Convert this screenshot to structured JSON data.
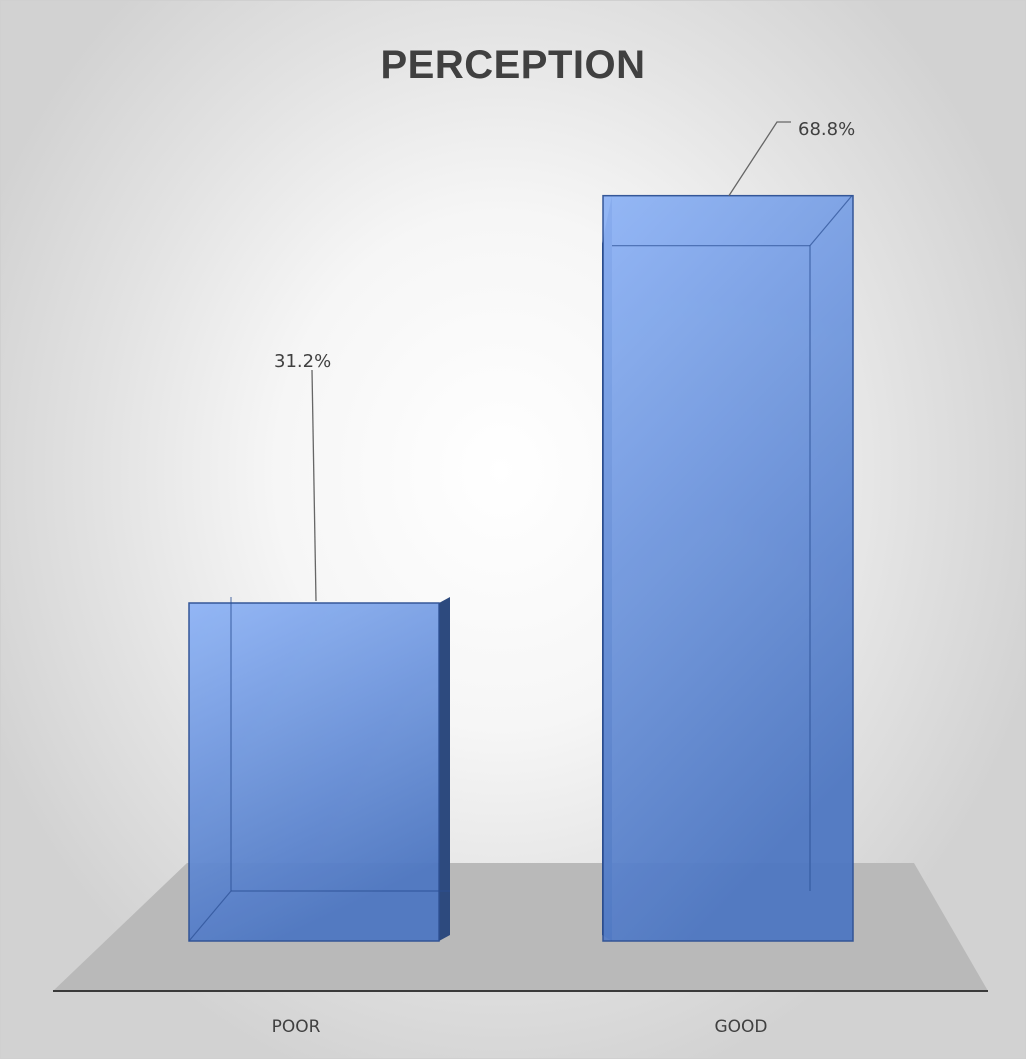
{
  "chart_data": {
    "type": "bar",
    "title": "PERCEPTION",
    "categories": [
      "POOR",
      "GOOD"
    ],
    "values": [
      31.2,
      68.8
    ],
    "value_labels": [
      "31.2%",
      "68.8%"
    ],
    "value_unit": "%",
    "ylim": [
      0,
      72
    ],
    "grid": false,
    "legend": "none",
    "three_d": true,
    "colors": {
      "bar_front_top": "#8fb4f6",
      "bar_front_bottom": "#4e77c2",
      "bar_side": "#2d4a7e",
      "bar_edge": "#2b4f94",
      "floor": "#b9b9b9",
      "axis": "#3a3a3a",
      "leader": "#666666"
    }
  }
}
